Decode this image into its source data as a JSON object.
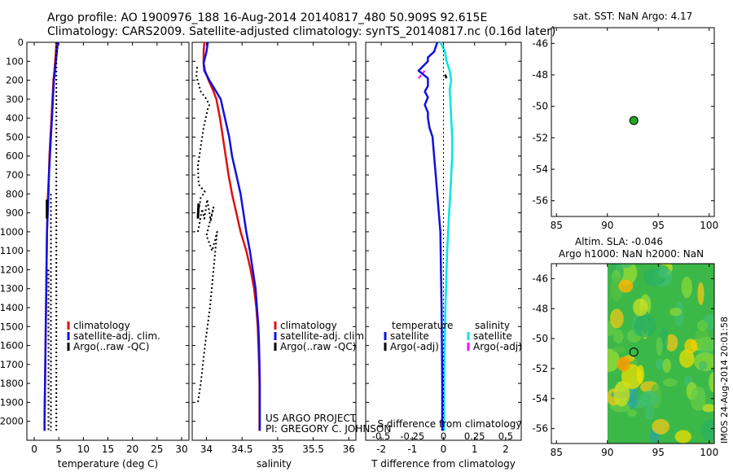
{
  "header": {
    "line1": "Argo profile: AO 1900976_188 16-Aug-2014 20140817_480 50.909S 92.615E",
    "line2": "Climatology: CARS2009. Satellite-adjusted climatology: synTS_20140817.nc (0.16d later)"
  },
  "credits": {
    "project": "US ARGO PROJECT",
    "pi": "PI: GREGORY C. JOHNSON",
    "stamp": "IMOS 24-Aug-2014 20:01:58"
  },
  "colors": {
    "climatology": "#e01010",
    "satellite": "#1010e0",
    "argo": "#000000",
    "sat_salinity": "#00e6e6",
    "argo_adj_salinity": "#ff00ff",
    "argo_marker": "#22aa22"
  },
  "chart_data": [
    {
      "type": "line",
      "panel": "temperature",
      "xlabel": "temperature (deg C)",
      "xlim": [
        -1.5,
        31.5
      ],
      "xticks": [
        0,
        5,
        10,
        15,
        20,
        25,
        30
      ],
      "ylim": [
        2100,
        0
      ],
      "yticks": [
        0,
        100,
        200,
        300,
        400,
        500,
        600,
        700,
        800,
        900,
        1000,
        1100,
        1200,
        1300,
        1400,
        1500,
        1600,
        1700,
        1800,
        1900,
        2000
      ],
      "legend": [
        "climatology",
        "satellite-adj. clim.",
        "Argo(..raw -QC)"
      ],
      "legend_position": "right",
      "series": [
        {
          "name": "climatology",
          "color_key": "climatology",
          "style": "solid",
          "width": 2.5,
          "points": [
            [
              4.5,
              0
            ],
            [
              4.4,
              50
            ],
            [
              4.1,
              150
            ],
            [
              3.9,
              200
            ],
            [
              3.7,
              300
            ],
            [
              3.5,
              400
            ],
            [
              3.3,
              500
            ],
            [
              3.1,
              600
            ],
            [
              3.0,
              700
            ],
            [
              2.8,
              800
            ],
            [
              2.7,
              900
            ],
            [
              2.6,
              1000
            ],
            [
              2.5,
              1200
            ],
            [
              2.4,
              1400
            ],
            [
              2.3,
              1600
            ],
            [
              2.2,
              1800
            ],
            [
              2.1,
              2000
            ],
            [
              2.1,
              2050
            ]
          ]
        },
        {
          "name": "satellite-adj. clim.",
          "color_key": "satellite",
          "style": "solid",
          "width": 2.5,
          "points": [
            [
              4.8,
              0
            ],
            [
              4.6,
              50
            ],
            [
              4.2,
              150
            ],
            [
              4.0,
              200
            ],
            [
              3.8,
              300
            ],
            [
              3.6,
              400
            ],
            [
              3.4,
              500
            ],
            [
              3.2,
              600
            ],
            [
              3.0,
              700
            ],
            [
              2.9,
              800
            ],
            [
              2.75,
              900
            ],
            [
              2.6,
              1000
            ],
            [
              2.5,
              1200
            ],
            [
              2.4,
              1400
            ],
            [
              2.3,
              1600
            ],
            [
              2.2,
              1800
            ],
            [
              2.1,
              2000
            ],
            [
              2.1,
              2050
            ]
          ]
        },
        {
          "name": "Argo(..raw -QC)",
          "color_key": "argo",
          "style": "dotted",
          "width": 2,
          "points": [
            [
              4.5,
              0
            ],
            [
              4.5,
              800
            ],
            [
              4.5,
              2050
            ]
          ]
        },
        {
          "name": "Argo(..raw -QC)",
          "color_key": "argo",
          "style": "dotted",
          "width": 2,
          "points": [
            [
              3.4,
              800
            ],
            [
              3.4,
              2050
            ]
          ]
        },
        {
          "name": "Argo(..raw -QC)",
          "color_key": "argo",
          "style": "dotted",
          "width": 2,
          "points": [
            [
              2.9,
              1200
            ],
            [
              2.9,
              2050
            ]
          ]
        },
        {
          "name": "Argo(..raw -QC)",
          "color_key": "argo",
          "style": "solid",
          "width": 3,
          "points": [
            [
              2.6,
              830
            ],
            [
              2.6,
              930
            ]
          ]
        }
      ]
    },
    {
      "type": "line",
      "panel": "salinity",
      "xlabel": "salinity",
      "xlim": [
        33.8,
        36.1
      ],
      "xticks": [
        34,
        34.5,
        35,
        35.5,
        36
      ],
      "ylim": [
        2100,
        0
      ],
      "legend": [
        "climatology",
        "satellite-adj. clim.",
        "Argo(..raw -QC)"
      ],
      "legend_position": "right",
      "series": [
        {
          "name": "climatology",
          "color_key": "climatology",
          "style": "solid",
          "width": 2.5,
          "points": [
            [
              33.97,
              0
            ],
            [
              33.96,
              50
            ],
            [
              33.96,
              110
            ],
            [
              33.98,
              150
            ],
            [
              34.03,
              200
            ],
            [
              34.09,
              250
            ],
            [
              34.14,
              300
            ],
            [
              34.19,
              400
            ],
            [
              34.23,
              500
            ],
            [
              34.27,
              600
            ],
            [
              34.31,
              700
            ],
            [
              34.36,
              800
            ],
            [
              34.42,
              900
            ],
            [
              34.48,
              1000
            ],
            [
              34.56,
              1100
            ],
            [
              34.62,
              1200
            ],
            [
              34.67,
              1300
            ],
            [
              34.7,
              1400
            ],
            [
              34.72,
              1500
            ],
            [
              34.73,
              1600
            ],
            [
              34.74,
              1700
            ],
            [
              34.745,
              1800
            ],
            [
              34.745,
              1900
            ],
            [
              34.745,
              2050
            ]
          ]
        },
        {
          "name": "satellite-adj. clim.",
          "color_key": "satellite",
          "style": "solid",
          "width": 2.5,
          "points": [
            [
              34.02,
              0
            ],
            [
              34.0,
              50
            ],
            [
              33.96,
              110
            ],
            [
              33.97,
              150
            ],
            [
              34.04,
              200
            ],
            [
              34.12,
              250
            ],
            [
              34.2,
              300
            ],
            [
              34.26,
              400
            ],
            [
              34.32,
              500
            ],
            [
              34.36,
              600
            ],
            [
              34.42,
              700
            ],
            [
              34.48,
              800
            ],
            [
              34.52,
              900
            ],
            [
              34.56,
              1000
            ],
            [
              34.61,
              1100
            ],
            [
              34.65,
              1200
            ],
            [
              34.69,
              1300
            ],
            [
              34.71,
              1400
            ],
            [
              34.73,
              1500
            ],
            [
              34.74,
              1600
            ],
            [
              34.745,
              1700
            ],
            [
              34.75,
              1800
            ],
            [
              34.75,
              1900
            ],
            [
              34.75,
              2050
            ]
          ]
        },
        {
          "name": "Argo(..raw -QC)",
          "color_key": "argo",
          "style": "dotted",
          "width": 2,
          "points": [
            [
              33.87,
              130
            ],
            [
              33.86,
              180
            ],
            [
              33.92,
              260
            ],
            [
              34.0,
              300
            ],
            [
              34.04,
              330
            ],
            [
              34.02,
              350
            ],
            [
              33.99,
              400
            ],
            [
              33.96,
              450
            ],
            [
              33.92,
              550
            ],
            [
              33.88,
              650
            ],
            [
              33.89,
              750
            ],
            [
              33.98,
              790
            ],
            [
              33.92,
              820
            ],
            [
              33.9,
              870
            ]
          ]
        },
        {
          "name": "Argo(..raw -QC)",
          "color_key": "argo",
          "style": "solid",
          "width": 3,
          "points": [
            [
              33.89,
              850
            ],
            [
              33.88,
              930
            ]
          ]
        },
        {
          "name": "Argo(..raw -QC)",
          "color_key": "argo",
          "style": "dotted",
          "width": 2,
          "points": [
            [
              33.88,
              1000
            ],
            [
              33.94,
              880
            ],
            [
              33.97,
              930
            ],
            [
              34.01,
              830
            ],
            [
              34.06,
              940
            ],
            [
              34.1,
              870
            ],
            [
              34.0,
              1020
            ],
            [
              34.08,
              1100
            ],
            [
              34.15,
              1000
            ],
            [
              34.1,
              1200
            ],
            [
              34.05,
              1400
            ],
            [
              33.98,
              1600
            ],
            [
              33.92,
              1800
            ],
            [
              33.88,
              1900
            ]
          ]
        }
      ]
    },
    {
      "type": "line",
      "panel": "difference",
      "xlabel": "T difference from climatology",
      "xlabel_top": "S difference from climatology",
      "xlim": [
        -2.5,
        2.5
      ],
      "xticks": [
        -2,
        -1,
        0,
        1,
        2
      ],
      "xticks_s": [
        -0.5,
        -0.25,
        0,
        0.25,
        0.5
      ],
      "ylim": [
        2100,
        0
      ],
      "legend_titles": [
        "temperature",
        "salinity"
      ],
      "legend": [
        "satellite",
        "Argo(-adj)",
        "satellite",
        "Argo(-adj)"
      ],
      "series": [
        {
          "name": "satellite",
          "group": "temperature",
          "color_key": "satellite",
          "style": "solid",
          "width": 2.5,
          "points": [
            [
              -0.2,
              0
            ],
            [
              -0.3,
              50
            ],
            [
              -0.5,
              80
            ],
            [
              -0.5,
              100
            ],
            [
              -0.8,
              150
            ],
            [
              -0.5,
              190
            ],
            [
              -0.5,
              230
            ],
            [
              -0.6,
              260
            ],
            [
              -0.5,
              290
            ],
            [
              -0.6,
              330
            ],
            [
              -0.5,
              370
            ],
            [
              -0.5,
              400
            ],
            [
              -0.45,
              450
            ],
            [
              -0.35,
              500
            ],
            [
              -0.3,
              600
            ],
            [
              -0.25,
              700
            ],
            [
              -0.2,
              800
            ],
            [
              -0.15,
              900
            ],
            [
              -0.1,
              1000
            ],
            [
              -0.08,
              1200
            ],
            [
              -0.06,
              1400
            ],
            [
              -0.05,
              1600
            ],
            [
              -0.04,
              1800
            ],
            [
              -0.04,
              2050
            ]
          ]
        },
        {
          "name": "satellite",
          "group": "salinity",
          "color_key": "sat_salinity",
          "style": "solid",
          "width": 2.5,
          "points": [
            [
              -0.1,
              0
            ],
            [
              0.05,
              50
            ],
            [
              0.1,
              100
            ],
            [
              0.2,
              150
            ],
            [
              0.25,
              200
            ],
            [
              0.2,
              250
            ],
            [
              0.22,
              300
            ],
            [
              0.25,
              400
            ],
            [
              0.28,
              500
            ],
            [
              0.28,
              600
            ],
            [
              0.25,
              700
            ],
            [
              0.22,
              800
            ],
            [
              0.18,
              900
            ],
            [
              0.15,
              1000
            ],
            [
              0.12,
              1100
            ],
            [
              0.1,
              1200
            ],
            [
              0.08,
              1300
            ],
            [
              0.06,
              1400
            ],
            [
              0.05,
              1500
            ],
            [
              0.04,
              1600
            ],
            [
              0.03,
              1700
            ],
            [
              0.02,
              1800
            ],
            [
              0.02,
              1900
            ],
            [
              0.02,
              2050
            ]
          ]
        },
        {
          "name": "Argo(-adj)",
          "group": "temperature",
          "color_key": "argo",
          "style": "solid",
          "width": 2.5,
          "points": [
            [
              0.05,
              170
            ],
            [
              0.1,
              190
            ]
          ]
        },
        {
          "name": "Argo(-adj)",
          "group": "salinity",
          "color_key": "argo_adj_salinity",
          "style": "dashed",
          "width": 2,
          "points": [
            [
              -0.8,
              190
            ],
            [
              -0.6,
              150
            ]
          ]
        },
        {
          "name": "zero",
          "group": "reference",
          "color_key": "argo",
          "style": "dotted",
          "width": 1,
          "points": [
            [
              0,
              0
            ],
            [
              0,
              2050
            ]
          ]
        }
      ]
    },
    {
      "type": "scatter",
      "panel": "sst-map",
      "title": "sat. SST: NaN Argo: 4.17",
      "xlim": [
        84.5,
        100.5
      ],
      "xticks": [
        85,
        90,
        95,
        100
      ],
      "ylim": [
        -57,
        -45
      ],
      "yticks": [
        -46,
        -48,
        -50,
        -52,
        -54,
        -56
      ],
      "points": [
        [
          92.6,
          -50.9
        ]
      ]
    },
    {
      "type": "heatmap",
      "panel": "sla-map",
      "title_line1": "Altim. SLA: -0.046",
      "title_line2": "Argo h1000: NaN h2000: NaN",
      "xlim": [
        84.5,
        100.5
      ],
      "xticks": [
        85,
        90,
        95,
        100
      ],
      "ylim": [
        -57,
        -45
      ],
      "yticks": [
        -46,
        -48,
        -50,
        -52,
        -54,
        -56
      ],
      "data_extent": {
        "x": [
          90,
          100.5
        ],
        "y": [
          -57,
          -45
        ]
      },
      "points": [
        [
          92.6,
          -50.9
        ]
      ]
    }
  ]
}
